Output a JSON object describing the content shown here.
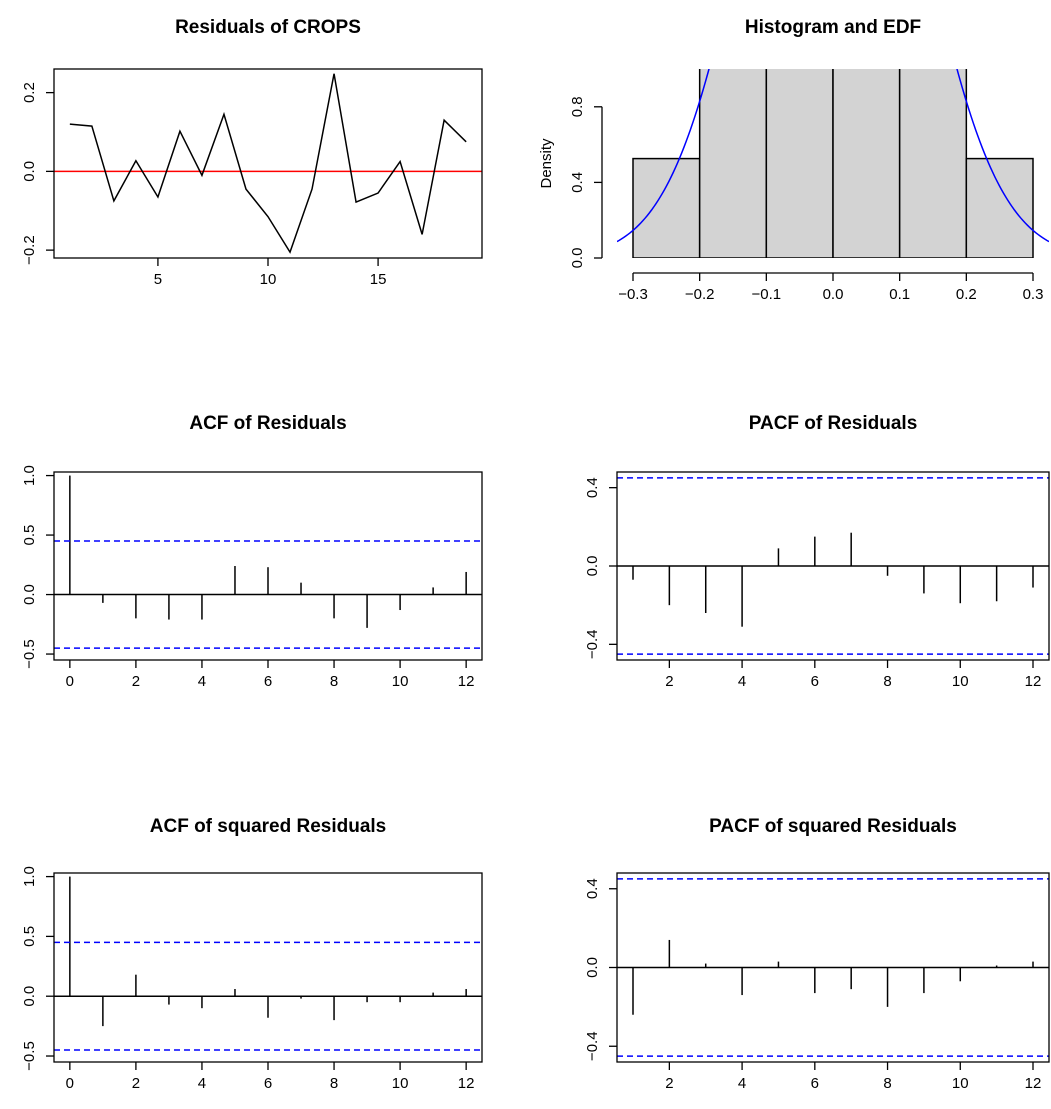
{
  "colors": {
    "line": "#000000",
    "zero_line": "#ff0000",
    "bounds": "#0000ff",
    "edf": "#0000ff",
    "bar_fill": "#d3d3d3"
  },
  "chart_data": [
    {
      "id": "res",
      "type": "line",
      "title": "Residuals of CROPS",
      "xlabel": "",
      "ylabel": "",
      "x": [
        1,
        2,
        3,
        4,
        5,
        6,
        7,
        8,
        9,
        10,
        11,
        12,
        13,
        14,
        15,
        16,
        17,
        18,
        19
      ],
      "values": [
        0.12,
        0.115,
        -0.075,
        0.027,
        -0.065,
        0.102,
        -0.01,
        0.145,
        -0.045,
        -0.115,
        -0.205,
        -0.045,
        0.248,
        -0.078,
        -0.055,
        0.025,
        -0.16,
        0.13,
        0.075
      ],
      "xlim": [
        0.28,
        19.72
      ],
      "ylim": [
        -0.22,
        0.26
      ],
      "xticks": [
        5,
        10,
        15
      ],
      "yticks": [
        -0.2,
        0.0,
        0.2
      ],
      "xtick_labels": [
        "5",
        "10",
        "15"
      ],
      "ytick_labels": [
        "−0.2",
        "0.0",
        "0.2"
      ],
      "hline": 0,
      "grid": false
    },
    {
      "id": "hist",
      "type": "bar",
      "title": "Histogram and EDF",
      "xlabel": "",
      "ylabel": "Density",
      "bin_edges": [
        -0.3,
        -0.2,
        -0.1,
        0.0,
        0.1,
        0.2,
        0.3
      ],
      "values": [
        0.526,
        1.053,
        1.053,
        1.053,
        1.053,
        0.526
      ],
      "density_curve": {
        "mean": 0.0,
        "sd": 0.12
      },
      "xlim": [
        -0.324,
        0.324
      ],
      "ylim": [
        0,
        1.0
      ],
      "xticks": [
        -0.3,
        -0.2,
        -0.1,
        0.0,
        0.1,
        0.2,
        0.3
      ],
      "yticks": [
        0.0,
        0.4,
        0.8
      ],
      "xtick_labels": [
        "−0.3",
        "−0.2",
        "−0.1",
        "0.0",
        "0.1",
        "0.2",
        "0.3"
      ],
      "ytick_labels": [
        "0.0",
        "0.4",
        "0.8"
      ],
      "grid": false
    },
    {
      "id": "acf",
      "type": "bar",
      "title": "ACF of Residuals",
      "xlabel": "",
      "ylabel": "",
      "x": [
        0,
        1,
        2,
        3,
        4,
        5,
        6,
        7,
        8,
        9,
        10,
        11,
        12
      ],
      "values": [
        1.0,
        -0.07,
        -0.2,
        -0.21,
        -0.21,
        0.24,
        0.23,
        0.1,
        -0.2,
        -0.28,
        -0.13,
        0.06,
        0.19
      ],
      "confidence_bound": 0.45,
      "xlim": [
        -0.48,
        12.48
      ],
      "ylim": [
        -0.55,
        1.03
      ],
      "xticks": [
        0,
        2,
        4,
        6,
        8,
        10,
        12
      ],
      "yticks": [
        -0.5,
        0.0,
        0.5,
        1.0
      ],
      "xtick_labels": [
        "0",
        "2",
        "4",
        "6",
        "8",
        "10",
        "12"
      ],
      "ytick_labels": [
        "−0.5",
        "0.0",
        "0.5",
        "1.0"
      ],
      "grid": false
    },
    {
      "id": "pacf",
      "type": "bar",
      "title": "PACF of Residuals",
      "xlabel": "",
      "ylabel": "",
      "x": [
        1,
        2,
        3,
        4,
        5,
        6,
        7,
        8,
        9,
        10,
        11,
        12
      ],
      "values": [
        -0.07,
        -0.2,
        -0.24,
        -0.31,
        0.09,
        0.15,
        0.17,
        -0.05,
        -0.14,
        -0.19,
        -0.18,
        -0.11
      ],
      "confidence_bound": 0.45,
      "xlim": [
        0.56,
        12.44
      ],
      "ylim": [
        -0.48,
        0.48
      ],
      "xticks": [
        2,
        4,
        6,
        8,
        10,
        12
      ],
      "yticks": [
        -0.4,
        0.0,
        0.4
      ],
      "xtick_labels": [
        "2",
        "4",
        "6",
        "8",
        "10",
        "12"
      ],
      "ytick_labels": [
        "−0.4",
        "0.0",
        "0.4"
      ],
      "grid": false
    },
    {
      "id": "acf2",
      "type": "bar",
      "title": "ACF of squared Residuals",
      "xlabel": "",
      "ylabel": "",
      "x": [
        0,
        1,
        2,
        3,
        4,
        5,
        6,
        7,
        8,
        9,
        10,
        11,
        12
      ],
      "values": [
        1.0,
        -0.25,
        0.18,
        -0.07,
        -0.1,
        0.06,
        -0.18,
        -0.02,
        -0.2,
        -0.05,
        -0.05,
        0.03,
        0.06
      ],
      "confidence_bound": 0.45,
      "xlim": [
        -0.48,
        12.48
      ],
      "ylim": [
        -0.55,
        1.03
      ],
      "xticks": [
        0,
        2,
        4,
        6,
        8,
        10,
        12
      ],
      "yticks": [
        -0.5,
        0.0,
        0.5,
        1.0
      ],
      "xtick_labels": [
        "0",
        "2",
        "4",
        "6",
        "8",
        "10",
        "12"
      ],
      "ytick_labels": [
        "−0.5",
        "0.0",
        "0.5",
        "1.0"
      ],
      "grid": false
    },
    {
      "id": "pacf2",
      "type": "bar",
      "title": "PACF of squared Residuals",
      "xlabel": "",
      "ylabel": "",
      "x": [
        1,
        2,
        3,
        4,
        5,
        6,
        7,
        8,
        9,
        10,
        11,
        12
      ],
      "values": [
        -0.24,
        0.14,
        0.02,
        -0.14,
        0.03,
        -0.13,
        -0.11,
        -0.2,
        -0.13,
        -0.07,
        0.01,
        0.03
      ],
      "confidence_bound": 0.45,
      "xlim": [
        0.56,
        12.44
      ],
      "ylim": [
        -0.48,
        0.48
      ],
      "xticks": [
        2,
        4,
        6,
        8,
        10,
        12
      ],
      "yticks": [
        -0.4,
        0.0,
        0.4
      ],
      "xtick_labels": [
        "2",
        "4",
        "6",
        "8",
        "10",
        "12"
      ],
      "ytick_labels": [
        "−0.4",
        "0.0",
        "0.4"
      ],
      "grid": false
    }
  ]
}
